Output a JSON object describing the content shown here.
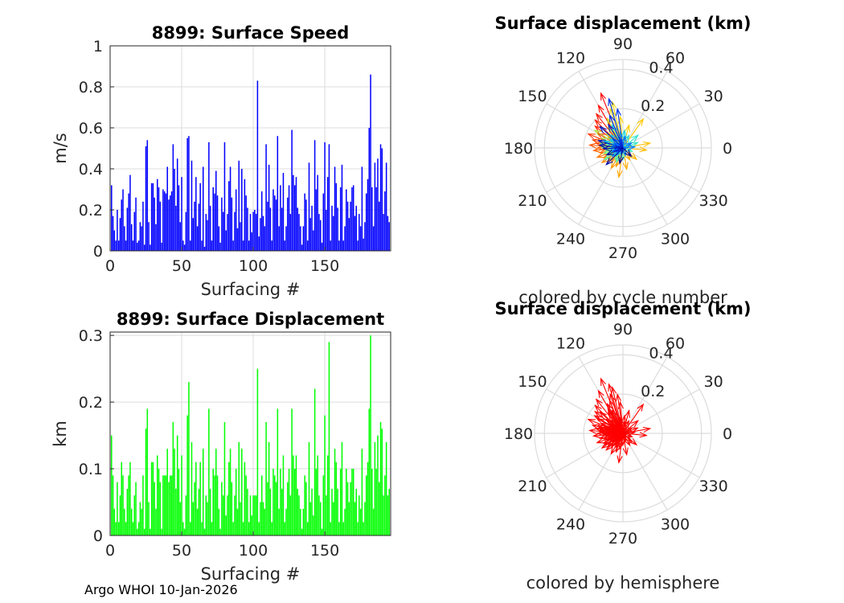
{
  "footer": "Argo WHOI 10-Jan-2026",
  "chart_data": [
    {
      "id": "speed",
      "type": "bar",
      "title": "8899: Surface Speed",
      "xlabel": "Surfacing #",
      "ylabel": "m/s",
      "xlim": [
        0,
        196
      ],
      "ylim": [
        0,
        1
      ],
      "xticks": [
        0,
        50,
        100,
        150
      ],
      "yticks": [
        0,
        0.2,
        0.4,
        0.6,
        0.8,
        1
      ],
      "ytick_labels": [
        "0",
        "0.2",
        "0.4",
        "0.6",
        "0.8",
        "1"
      ],
      "grid": true,
      "color": "#0000ff",
      "x_start": 1,
      "values": [
        0.32,
        0.17,
        0.1,
        0.05,
        0.2,
        0.05,
        0.16,
        0.25,
        0.3,
        0.12,
        0.05,
        0.21,
        0.28,
        0.37,
        0.13,
        0.05,
        0.19,
        0.26,
        0.04,
        0.05,
        0.14,
        0.12,
        0.24,
        0.03,
        0.51,
        0.54,
        0.14,
        0.03,
        0.33,
        0.33,
        0.26,
        0.13,
        0.35,
        0.31,
        0.24,
        0.04,
        0.3,
        0.29,
        0.28,
        0.41,
        0.25,
        0.27,
        0.29,
        0.52,
        0.4,
        0.22,
        0.45,
        0.32,
        0.14,
        0.36,
        0.05,
        0.03,
        0.19,
        0.55,
        0.56,
        0.05,
        0.44,
        0.16,
        0.24,
        0.36,
        0.12,
        0.23,
        0.33,
        0.05,
        0.41,
        0.02,
        0.18,
        0.15,
        0.53,
        0.22,
        0.05,
        0.31,
        0.28,
        0.39,
        0.27,
        0.12,
        0.04,
        0.26,
        0.19,
        0.53,
        0.1,
        0.18,
        0.34,
        0.41,
        0.26,
        0.05,
        0.19,
        0.3,
        0.11,
        0.44,
        0.14,
        0.4,
        0.05,
        0.35,
        0.27,
        0.21,
        0.05,
        0.18,
        0.09,
        0.19,
        0.2,
        0.18,
        0.83,
        0.07,
        0.16,
        0.29,
        0.17,
        0.12,
        0.52,
        0.24,
        0.42,
        0.21,
        0.05,
        0.3,
        0.27,
        0.25,
        0.56,
        0.12,
        0.32,
        0.21,
        0.38,
        0.05,
        0.12,
        0.26,
        0.32,
        0.18,
        0.59,
        0.37,
        0.32,
        0.36,
        0.21,
        0.18,
        0.12,
        0.03,
        0.12,
        0.28,
        0.25,
        0.05,
        0.43,
        0.16,
        0.22,
        0.1,
        0.54,
        0.3,
        0.37,
        0.18,
        0.15,
        0.04,
        0.28,
        0.53,
        0.2,
        0.36,
        0.52,
        0.05,
        0.22,
        0.17,
        0.41,
        0.33,
        0.21,
        0.05,
        0.31,
        0.42,
        0.05,
        0.12,
        0.3,
        0.24,
        0.16,
        0.24,
        0.31,
        0.32,
        0.17,
        0.22,
        0.05,
        0.18,
        0.12,
        0.41,
        0.06,
        0.14,
        0.28,
        0.35,
        0.6,
        0.86,
        0.31,
        0.12,
        0.43,
        0.31,
        0.45,
        0.24,
        0.52,
        0.5,
        0.18,
        0.29,
        0.43,
        0.17,
        0.14
      ]
    },
    {
      "id": "displacement",
      "type": "bar",
      "title": "8899: Surface Displacement",
      "xlabel": "Surfacing #",
      "ylabel": "km",
      "xlim": [
        0,
        196
      ],
      "ylim": [
        0,
        0.305
      ],
      "xticks": [
        0,
        50,
        100,
        150
      ],
      "yticks": [
        0,
        0.1,
        0.2,
        0.3
      ],
      "ytick_labels": [
        "0",
        "0.1",
        "0.2",
        "0.3"
      ],
      "grid": true,
      "color": "#00ff00",
      "x_start": 1,
      "values": [
        0.15,
        0.09,
        0.04,
        0.02,
        0.08,
        0.02,
        0.06,
        0.11,
        0.09,
        0.04,
        0.02,
        0.07,
        0.09,
        0.11,
        0.04,
        0.02,
        0.06,
        0.08,
        0.01,
        0.02,
        0.05,
        0.04,
        0.09,
        0.01,
        0.16,
        0.19,
        0.05,
        0.01,
        0.11,
        0.11,
        0.08,
        0.04,
        0.12,
        0.1,
        0.08,
        0.01,
        0.09,
        0.09,
        0.09,
        0.13,
        0.08,
        0.09,
        0.09,
        0.17,
        0.13,
        0.07,
        0.15,
        0.1,
        0.05,
        0.12,
        0.02,
        0.01,
        0.06,
        0.18,
        0.23,
        0.02,
        0.14,
        0.05,
        0.08,
        0.11,
        0.04,
        0.07,
        0.11,
        0.02,
        0.13,
        0.01,
        0.06,
        0.05,
        0.19,
        0.07,
        0.02,
        0.1,
        0.09,
        0.13,
        0.09,
        0.04,
        0.01,
        0.08,
        0.06,
        0.17,
        0.03,
        0.06,
        0.11,
        0.13,
        0.08,
        0.02,
        0.06,
        0.1,
        0.04,
        0.14,
        0.05,
        0.13,
        0.02,
        0.11,
        0.09,
        0.07,
        0.02,
        0.06,
        0.03,
        0.06,
        0.06,
        0.06,
        0.25,
        0.02,
        0.05,
        0.09,
        0.05,
        0.04,
        0.17,
        0.08,
        0.14,
        0.07,
        0.02,
        0.1,
        0.09,
        0.08,
        0.19,
        0.04,
        0.1,
        0.07,
        0.12,
        0.02,
        0.04,
        0.08,
        0.1,
        0.06,
        0.19,
        0.12,
        0.1,
        0.12,
        0.07,
        0.06,
        0.04,
        0.01,
        0.04,
        0.09,
        0.08,
        0.02,
        0.14,
        0.05,
        0.07,
        0.03,
        0.22,
        0.1,
        0.12,
        0.06,
        0.05,
        0.01,
        0.09,
        0.18,
        0.06,
        0.12,
        0.29,
        0.02,
        0.07,
        0.05,
        0.13,
        0.11,
        0.07,
        0.02,
        0.1,
        0.14,
        0.02,
        0.04,
        0.1,
        0.08,
        0.05,
        0.08,
        0.1,
        0.1,
        0.05,
        0.07,
        0.02,
        0.06,
        0.04,
        0.13,
        0.02,
        0.05,
        0.09,
        0.11,
        0.19,
        0.3,
        0.1,
        0.04,
        0.14,
        0.1,
        0.15,
        0.08,
        0.17,
        0.16,
        0.06,
        0.09,
        0.14,
        0.06,
        0.07
      ]
    },
    {
      "id": "polar-cycle",
      "type": "polar-vectors",
      "title": "Surface displacement (km)",
      "caption": "colored by cycle number",
      "rmax": 0.45,
      "rrings": [
        0.2,
        0.4
      ],
      "rring_labels": [
        "0.2",
        "0.4"
      ],
      "angle_ticks": [
        0,
        30,
        60,
        90,
        120,
        150,
        180,
        210,
        240,
        270,
        300,
        330
      ],
      "angle_labels": [
        "0",
        "30",
        "60",
        "90",
        "120",
        "150",
        "180",
        "210",
        "240",
        "270",
        "300",
        "330"
      ],
      "color_mode": "cycle",
      "colormap": [
        "#ff0000",
        "#ff8000",
        "#ffd000",
        "#60ffa0",
        "#00c0ff",
        "#0040ff",
        "#00008b"
      ]
    },
    {
      "id": "polar-hemisphere",
      "type": "polar-vectors",
      "title": "Surface displacement (km)",
      "caption": "colored by hemisphere",
      "rmax": 0.45,
      "rrings": [
        0.2,
        0.4
      ],
      "rring_labels": [
        "0.2",
        "0.4"
      ],
      "angle_ticks": [
        0,
        30,
        60,
        90,
        120,
        150,
        180,
        210,
        240,
        270,
        300,
        330
      ],
      "angle_labels": [
        "0",
        "30",
        "60",
        "90",
        "120",
        "150",
        "180",
        "210",
        "240",
        "270",
        "300",
        "330"
      ],
      "color_mode": "single",
      "color": "#ff0000"
    }
  ],
  "vectors": [
    {
      "r": 0.3,
      "a": 112
    },
    {
      "r": 0.25,
      "a": 120
    },
    {
      "r": 0.22,
      "a": 128
    },
    {
      "r": 0.2,
      "a": 135
    },
    {
      "r": 0.18,
      "a": 142
    },
    {
      "r": 0.15,
      "a": 150
    },
    {
      "r": 0.19,
      "a": 158
    },
    {
      "r": 0.16,
      "a": 165
    },
    {
      "r": 0.14,
      "a": 170
    },
    {
      "r": 0.17,
      "a": 175
    },
    {
      "r": 0.13,
      "a": 180
    },
    {
      "r": 0.15,
      "a": 185
    },
    {
      "r": 0.12,
      "a": 192
    },
    {
      "r": 0.14,
      "a": 200
    },
    {
      "r": 0.11,
      "a": 207
    },
    {
      "r": 0.13,
      "a": 215
    },
    {
      "r": 0.1,
      "a": 222
    },
    {
      "r": 0.09,
      "a": 230
    },
    {
      "r": 0.12,
      "a": 240
    },
    {
      "r": 0.1,
      "a": 250
    },
    {
      "r": 0.15,
      "a": 262
    },
    {
      "r": 0.11,
      "a": 280
    },
    {
      "r": 0.07,
      "a": 300
    },
    {
      "r": 0.09,
      "a": 320
    },
    {
      "r": 0.12,
      "a": 355
    },
    {
      "r": 0.14,
      "a": 10
    },
    {
      "r": 0.18,
      "a": 55
    },
    {
      "r": 0.12,
      "a": 75
    },
    {
      "r": 0.16,
      "a": 95
    },
    {
      "r": 0.24,
      "a": 103
    },
    {
      "r": 0.21,
      "a": 108
    },
    {
      "r": 0.17,
      "a": 118
    },
    {
      "r": 0.13,
      "a": 125
    },
    {
      "r": 0.11,
      "a": 140
    },
    {
      "r": 0.17,
      "a": 148
    },
    {
      "r": 0.12,
      "a": 155
    },
    {
      "r": 0.1,
      "a": 162
    },
    {
      "r": 0.12,
      "a": 168
    },
    {
      "r": 0.11,
      "a": 178
    },
    {
      "r": 0.09,
      "a": 188
    },
    {
      "r": 0.1,
      "a": 196
    },
    {
      "r": 0.08,
      "a": 205
    },
    {
      "r": 0.11,
      "a": 212
    },
    {
      "r": 0.07,
      "a": 235
    },
    {
      "r": 0.08,
      "a": 245
    },
    {
      "r": 0.06,
      "a": 270
    },
    {
      "r": 0.05,
      "a": 340
    },
    {
      "r": 0.08,
      "a": 20
    },
    {
      "r": 0.1,
      "a": 40
    },
    {
      "r": 0.07,
      "a": 65
    },
    {
      "r": 0.09,
      "a": 85
    },
    {
      "r": 0.08,
      "a": 100
    },
    {
      "r": 0.13,
      "a": 115
    },
    {
      "r": 0.09,
      "a": 132
    },
    {
      "r": 0.08,
      "a": 145
    },
    {
      "r": 0.1,
      "a": 160
    },
    {
      "r": 0.06,
      "a": 172
    },
    {
      "r": 0.07,
      "a": 183
    },
    {
      "r": 0.06,
      "a": 198
    },
    {
      "r": 0.07,
      "a": 218
    },
    {
      "r": 0.05,
      "a": 228
    },
    {
      "r": 0.04,
      "a": 290
    },
    {
      "r": 0.06,
      "a": 5
    },
    {
      "r": 0.05,
      "a": 30
    },
    {
      "r": 0.06,
      "a": 80
    },
    {
      "r": 0.05,
      "a": 110
    },
    {
      "r": 0.07,
      "a": 138
    },
    {
      "r": 0.05,
      "a": 152
    },
    {
      "r": 0.04,
      "a": 175
    },
    {
      "r": 0.05,
      "a": 195
    },
    {
      "r": 0.04,
      "a": 210
    },
    {
      "r": 0.03,
      "a": 255
    },
    {
      "r": 0.2,
      "a": 98
    },
    {
      "r": 0.26,
      "a": 106
    },
    {
      "r": 0.18,
      "a": 112
    },
    {
      "r": 0.14,
      "a": 122
    },
    {
      "r": 0.16,
      "a": 137
    },
    {
      "r": 0.13,
      "a": 163
    },
    {
      "r": 0.12,
      "a": 173
    },
    {
      "r": 0.1,
      "a": 182
    },
    {
      "r": 0.09,
      "a": 203
    },
    {
      "r": 0.12,
      "a": 225
    },
    {
      "r": 0.08,
      "a": 258
    },
    {
      "r": 0.06,
      "a": 315
    }
  ]
}
